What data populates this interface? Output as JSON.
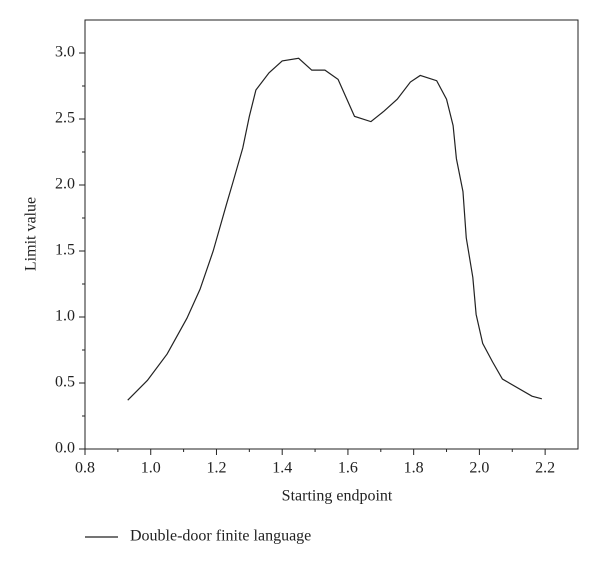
{
  "chart_data": {
    "type": "line",
    "x_label": "Starting endpoint",
    "y_label": "Limit value",
    "x": [
      0.93,
      0.99,
      1.05,
      1.11,
      1.15,
      1.19,
      1.23,
      1.25,
      1.28,
      1.3,
      1.32,
      1.36,
      1.4,
      1.45,
      1.49,
      1.53,
      1.57,
      1.62,
      1.67,
      1.71,
      1.75,
      1.79,
      1.82,
      1.87,
      1.9,
      1.92,
      1.93,
      1.95,
      1.96,
      1.98,
      1.99,
      2.01,
      2.04,
      2.07,
      2.16,
      2.19
    ],
    "series": [
      {
        "name": "Double-door finite language",
        "color": "#222222",
        "values": [
          0.37,
          0.52,
          0.72,
          0.99,
          1.21,
          1.5,
          1.85,
          2.02,
          2.28,
          2.52,
          2.72,
          2.85,
          2.94,
          2.96,
          2.87,
          2.87,
          2.8,
          2.52,
          2.48,
          2.56,
          2.65,
          2.78,
          2.83,
          2.79,
          2.65,
          2.45,
          2.2,
          1.95,
          1.6,
          1.3,
          1.02,
          0.8,
          0.66,
          0.53,
          0.4,
          0.38
        ]
      }
    ],
    "xlim": [
      0.8,
      2.3
    ],
    "ylim": [
      0,
      3.25
    ],
    "xticks": [
      {
        "value": 0.8,
        "label": "0.8"
      },
      {
        "value": 1,
        "label": "1.0"
      },
      {
        "value": 1.2,
        "label": "1.2"
      },
      {
        "value": 1.4,
        "label": "1.4"
      },
      {
        "value": 1.6,
        "label": "1.6"
      },
      {
        "value": 1.8,
        "label": "1.8"
      },
      {
        "value": 2,
        "label": "2.0"
      },
      {
        "value": 2.2,
        "label": "2.2"
      }
    ],
    "yticks": [
      {
        "value": 0,
        "label": "0.0"
      },
      {
        "value": 0.5,
        "label": "0.5"
      },
      {
        "value": 1,
        "label": "1.0"
      },
      {
        "value": 1.5,
        "label": "1.5"
      },
      {
        "value": 2,
        "label": "2.0"
      },
      {
        "value": 2.5,
        "label": "2.5"
      },
      {
        "value": 3,
        "label": "3.0"
      }
    ],
    "xminorticks": [
      0.9,
      1.1,
      1.3,
      1.5,
      1.7,
      1.9,
      2.1
    ],
    "yminorticks": [
      0.25,
      0.75,
      1.25,
      1.75,
      2.25,
      2.75
    ],
    "grid": false
  }
}
